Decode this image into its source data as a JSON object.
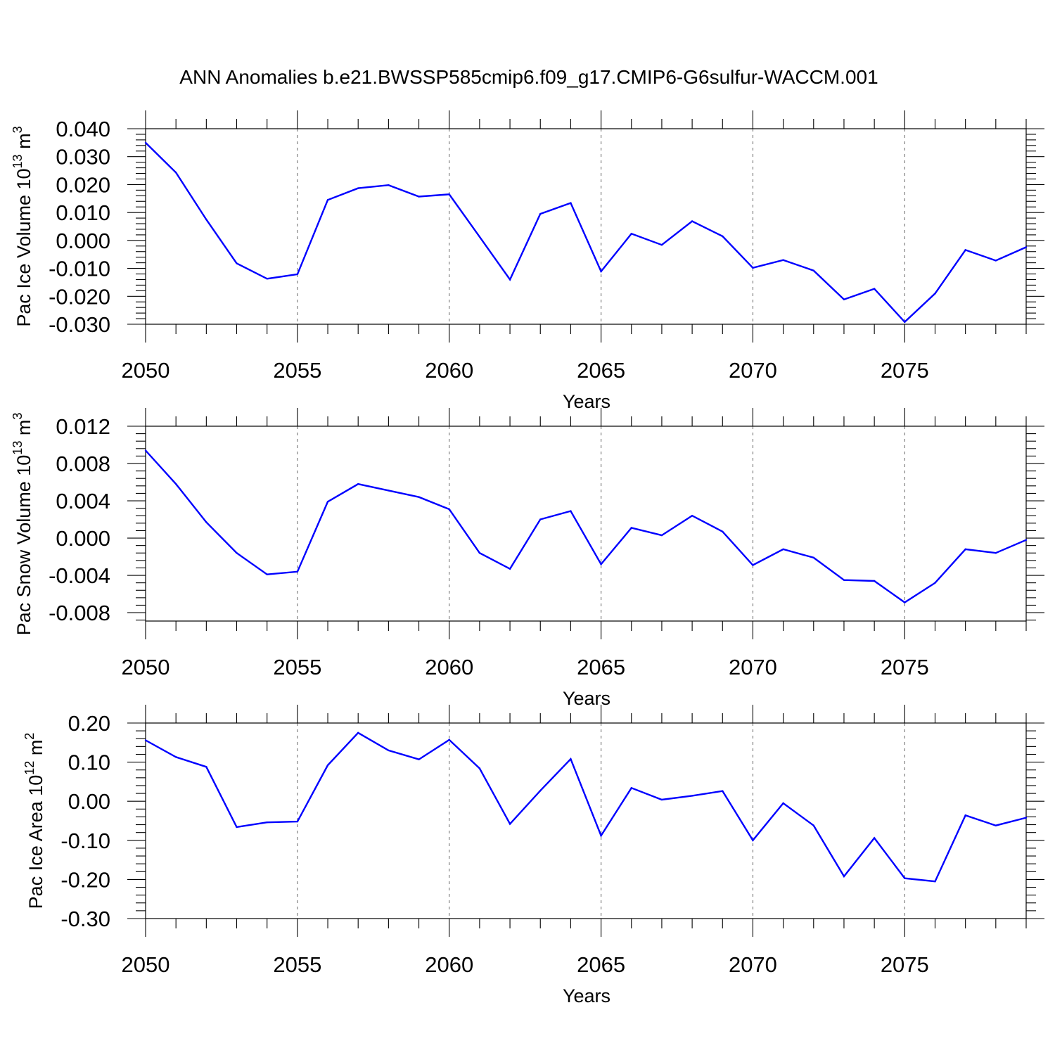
{
  "title": "ANN Anomalies b.e21.BWSSP585cmip6.f09_g17.CMIP6-G6sulfur-WACCM.001",
  "colors": {
    "line": "#0000ff",
    "axis": "#000000",
    "grid": "#808080"
  },
  "chart_data": [
    {
      "type": "line",
      "xlabel": "Years",
      "ylabel": {
        "main": "Pac Ice Volume 10",
        "exp": "13",
        "unit": " m",
        "unit_exp": "3"
      },
      "xlim": [
        2050,
        2079
      ],
      "ylim": [
        -0.03,
        0.04
      ],
      "xticks": [
        "2050",
        "2055",
        "2060",
        "2065",
        "2070",
        "2075"
      ],
      "yticks": [
        "0.040",
        "0.030",
        "0.020",
        "0.010",
        "0.000",
        "-0.010",
        "-0.020",
        "-0.030"
      ],
      "grid": "vertical-dashed",
      "x": [
        2050,
        2051,
        2052,
        2053,
        2054,
        2055,
        2056,
        2057,
        2058,
        2059,
        2060,
        2061,
        2062,
        2063,
        2064,
        2065,
        2066,
        2067,
        2068,
        2069,
        2070,
        2071,
        2072,
        2073,
        2074,
        2075,
        2076,
        2077,
        2078,
        2079
      ],
      "values": [
        0.035,
        0.0243,
        0.0075,
        -0.0082,
        -0.0137,
        -0.0121,
        0.0145,
        0.0187,
        0.0198,
        0.0157,
        0.0165,
        0.0013,
        -0.014,
        0.0095,
        0.0134,
        -0.0111,
        0.0024,
        -0.0016,
        0.0069,
        0.0015,
        -0.0098,
        -0.007,
        -0.0108,
        -0.0211,
        -0.0173,
        -0.0292,
        -0.019,
        -0.0034,
        -0.0072,
        -0.0024
      ]
    },
    {
      "type": "line",
      "xlabel": "Years",
      "ylabel": {
        "main": "Pac Snow Volume 10",
        "exp": "13",
        "unit": " m",
        "unit_exp": "3"
      },
      "xlim": [
        2050,
        2079
      ],
      "ylim": [
        -0.0089,
        0.012
      ],
      "xticks": [
        "2050",
        "2055",
        "2060",
        "2065",
        "2070",
        "2075"
      ],
      "yticks": [
        "0.012",
        "0.008",
        "0.004",
        "0.000",
        "-0.004",
        "-0.008"
      ],
      "grid": "vertical-dashed",
      "x": [
        2050,
        2051,
        2052,
        2053,
        2054,
        2055,
        2056,
        2057,
        2058,
        2059,
        2060,
        2061,
        2062,
        2063,
        2064,
        2065,
        2066,
        2067,
        2068,
        2069,
        2070,
        2071,
        2072,
        2073,
        2074,
        2075,
        2076,
        2077,
        2078,
        2079
      ],
      "values": [
        0.0094,
        0.0058,
        0.0017,
        -0.0016,
        -0.0039,
        -0.0036,
        0.0039,
        0.0058,
        0.0051,
        0.0044,
        0.0031,
        -0.0016,
        -0.0033,
        0.002,
        0.0029,
        -0.0028,
        0.0011,
        0.0003,
        0.0024,
        0.0007,
        -0.0029,
        -0.0012,
        -0.0021,
        -0.0045,
        -0.0046,
        -0.0069,
        -0.0048,
        -0.0012,
        -0.0016,
        -0.0002
      ]
    },
    {
      "type": "line",
      "xlabel": "Years",
      "ylabel": {
        "main": "Pac Ice Area 10",
        "exp": "12",
        "unit": " m",
        "unit_exp": "2"
      },
      "xlim": [
        2050,
        2079
      ],
      "ylim": [
        -0.3,
        0.2
      ],
      "xticks": [
        "2050",
        "2055",
        "2060",
        "2065",
        "2070",
        "2075"
      ],
      "yticks": [
        "0.20",
        "0.10",
        "0.00",
        "-0.10",
        "-0.20",
        "-0.30"
      ],
      "grid": "vertical-dashed",
      "x": [
        2050,
        2051,
        2052,
        2053,
        2054,
        2055,
        2056,
        2057,
        2058,
        2059,
        2060,
        2061,
        2062,
        2063,
        2064,
        2065,
        2066,
        2067,
        2068,
        2069,
        2070,
        2071,
        2072,
        2073,
        2074,
        2075,
        2076,
        2077,
        2078,
        2079
      ],
      "values": [
        0.156,
        0.113,
        0.088,
        -0.066,
        -0.054,
        -0.052,
        0.092,
        0.175,
        0.13,
        0.107,
        0.157,
        0.084,
        -0.058,
        0.027,
        0.108,
        -0.088,
        0.034,
        0.004,
        0.014,
        0.026,
        -0.1,
        -0.005,
        -0.062,
        -0.192,
        -0.094,
        -0.197,
        -0.205,
        -0.036,
        -0.062,
        -0.042
      ]
    }
  ]
}
